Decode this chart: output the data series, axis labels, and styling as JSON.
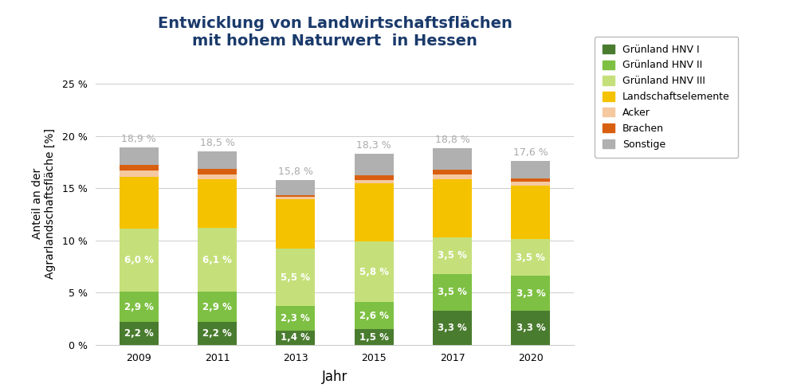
{
  "title": "Entwicklung von Landwirtschaftsflächen\nmit hohem Naturwert  in Hessen",
  "xlabel": "Jahr",
  "ylabel": "Anteil an der\nAgrarlandschaftsfläche [%]",
  "years": [
    "2009",
    "2011",
    "2013",
    "2015",
    "2017",
    "2020"
  ],
  "categories": [
    "Grünland HNV I",
    "Grünland HNV II",
    "Grünland HNV III",
    "Landschaftselemente",
    "Acker",
    "Brachen",
    "Sonstige"
  ],
  "colors": [
    "#4a7c2f",
    "#7ec043",
    "#c5e07a",
    "#f5c200",
    "#f5c8a0",
    "#d95f10",
    "#b0b0b0"
  ],
  "data": {
    "Grünland HNV I": [
      2.2,
      2.2,
      1.4,
      1.5,
      3.3,
      3.3
    ],
    "Grünland HNV II": [
      2.9,
      2.9,
      2.3,
      2.6,
      3.5,
      3.3
    ],
    "Grünland HNV III": [
      6.0,
      6.1,
      5.5,
      5.8,
      3.5,
      3.5
    ],
    "Landschaftselemente": [
      4.95,
      4.65,
      4.75,
      5.55,
      5.55,
      5.15
    ],
    "Acker": [
      0.65,
      0.45,
      0.25,
      0.35,
      0.45,
      0.4
    ],
    "Brachen": [
      0.5,
      0.55,
      0.15,
      0.4,
      0.5,
      0.25
    ],
    "Sonstige": [
      1.7,
      1.65,
      1.4,
      2.1,
      2.0,
      1.7
    ]
  },
  "totals_str": [
    "18,9 %",
    "18,5 %",
    "15,8 %",
    "18,3 %",
    "18,8 %",
    "17,6 %"
  ],
  "totals_val": [
    18.9,
    18.5,
    15.8,
    18.3,
    18.8,
    17.6
  ],
  "bar_labels": {
    "Grünland HNV I": [
      "2,2 %",
      "2,2 %",
      "1,4 %",
      "1,5 %",
      "3,3 %",
      "3,3 %"
    ],
    "Grünland HNV II": [
      "2,9 %",
      "2,9 %",
      "2,3 %",
      "2,6 %",
      "3,5 %",
      "3,3 %"
    ],
    "Grünland HNV III": [
      "6,0 %",
      "6,1 %",
      "5,5 %",
      "5,8 %",
      "3,5 %",
      "3,5 %"
    ]
  },
  "ylim": [
    0,
    27
  ],
  "yticks": [
    0,
    5,
    10,
    15,
    20,
    25
  ],
  "ytick_labels": [
    "0 %",
    "5 %",
    "10 %",
    "15 %",
    "20 %",
    "25 %"
  ],
  "background_color": "#ffffff",
  "title_color": "#1a3a6b",
  "title_fontsize": 14,
  "axis_label_fontsize": 10,
  "tick_fontsize": 9,
  "total_label_fontsize": 9,
  "bar_label_fontsize": 8.5,
  "legend_fontsize": 9,
  "bar_width": 0.5
}
